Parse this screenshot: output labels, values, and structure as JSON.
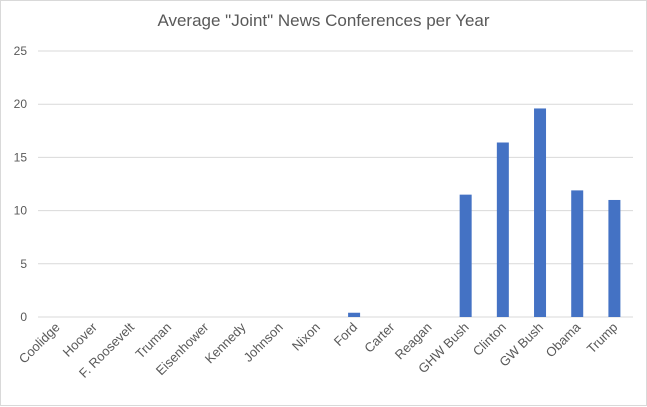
{
  "chart_data": {
    "type": "bar",
    "title": "Average \"Joint\" News Conferences per Year",
    "xlabel": "",
    "ylabel": "",
    "categories": [
      "Coolidge",
      "Hoover",
      "F. Roosevelt",
      "Truman",
      "Eisenhower",
      "Kennedy",
      "Johnson",
      "Nixon",
      "Ford",
      "Carter",
      "Reagan",
      "GHW Bush",
      "Clinton",
      "GW Bush",
      "Obama",
      "Trump"
    ],
    "values": [
      0,
      0,
      0,
      0,
      0,
      0,
      0,
      0,
      0.4,
      0,
      0,
      11.5,
      16.4,
      19.6,
      11.9,
      11.0
    ],
    "ylim": [
      0,
      25
    ],
    "yticks": [
      0,
      5,
      10,
      15,
      20,
      25
    ],
    "grid": true,
    "bar_color": "#4472c4",
    "grid_color": "#d9d9d9"
  }
}
